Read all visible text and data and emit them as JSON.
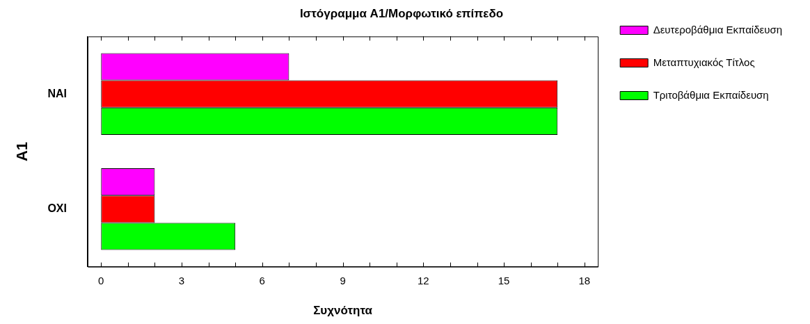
{
  "chart_data": {
    "type": "bar",
    "orientation": "horizontal",
    "title": "Ιστόγραμμα A1/Μορφωτικό επίπεδο",
    "xlabel": "Συχνότητα",
    "ylabel": "A1",
    "categories": [
      "NAI",
      "OXI"
    ],
    "series": [
      {
        "name": "Δευτεροβάθμια Εκπαίδευση",
        "color": "#ff00ff",
        "values": [
          7,
          2
        ]
      },
      {
        "name": "Μεταπτυχιακός Τίτλος",
        "color": "#ff0000",
        "values": [
          17,
          2
        ]
      },
      {
        "name": "Τριτοβάθμια Εκπαίδευση",
        "color": "#00ff00",
        "values": [
          17,
          5
        ]
      }
    ],
    "xlim": [
      -0.5,
      18.5
    ],
    "xticks": [
      0,
      {
        "value": 1,
        "label": null
      },
      {
        "value": 2,
        "label": null
      },
      3,
      {
        "value": 4,
        "label": null
      },
      {
        "value": 5,
        "label": null
      },
      6,
      {
        "value": 7,
        "label": null
      },
      {
        "value": 8,
        "label": null
      },
      9,
      {
        "value": 10,
        "label": null
      },
      {
        "value": 11,
        "label": null
      },
      12,
      {
        "value": 13,
        "label": null
      },
      {
        "value": 14,
        "label": null
      },
      15,
      {
        "value": 16,
        "label": null
      },
      {
        "value": 17,
        "label": null
      },
      18
    ],
    "grid": false,
    "legend": "right"
  }
}
